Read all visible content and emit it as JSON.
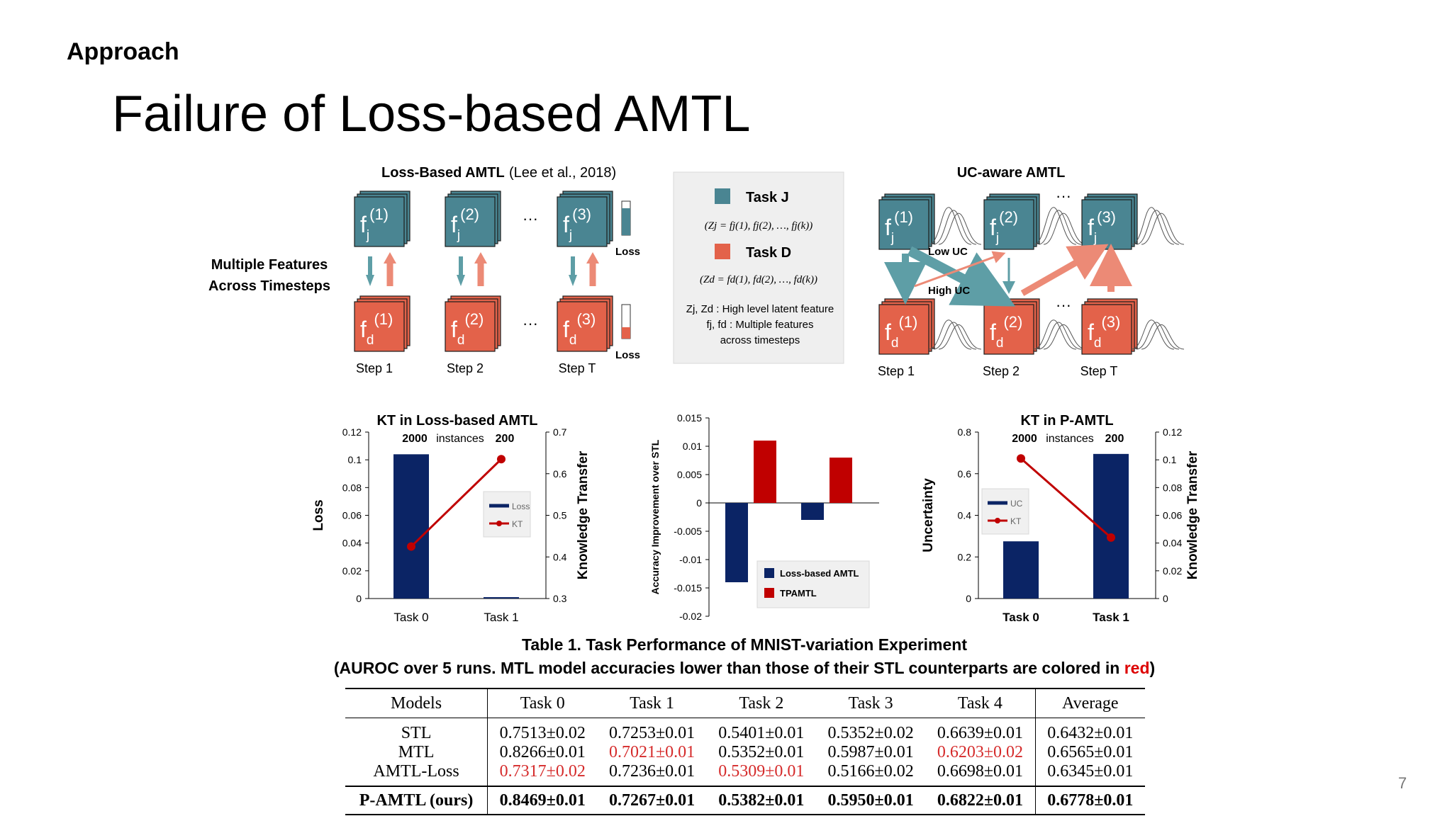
{
  "section": "Approach",
  "title": "Failure of Loss-based AMTL",
  "page_number": "7",
  "diagram_left": {
    "title_bold": "Loss-Based AMTL",
    "title_cite": "(Lee et al., 2018)",
    "side_label_1": "Multiple Features",
    "side_label_2": "Across Timesteps",
    "feat_j": [
      "f",
      "j",
      "(1)",
      "(2)",
      "(3)"
    ],
    "feat_d": [
      "f",
      "d"
    ],
    "loss": "Loss",
    "steps": [
      "Step 1",
      "Step 2",
      "Step T"
    ],
    "ellipsis": "···"
  },
  "legend_box": {
    "task_j": "Task J",
    "task_j_formula": "(Zj = fj(1), fj(2), …, fj(k))",
    "task_d": "Task D",
    "task_d_formula": "(Zd = fd(1), fd(2), …, fd(k))",
    "note1": "Zj, Zd : High level latent feature",
    "note2": "fj, fd : Multiple features",
    "note3": "across timesteps"
  },
  "diagram_right": {
    "title": "UC-aware AMTL",
    "low_uc": "Low UC",
    "high_uc": "High UC",
    "steps": [
      "Step 1",
      "Step 2",
      "Step T"
    ]
  },
  "colors": {
    "teal": "#4a8592",
    "orange": "#e3624a",
    "navy": "#0b2465",
    "red": "#c00000"
  },
  "chart_data": [
    {
      "type": "bar+line",
      "title": "KT in Loss-based AMTL",
      "annotation": [
        "2000",
        "instances",
        "200"
      ],
      "categories": [
        "Task 0",
        "Task 1"
      ],
      "ylabel": "Loss",
      "y2label": "Knowledge Transfer",
      "ylim": [
        0,
        0.12
      ],
      "yticks": [
        "0",
        "0.02",
        "0.04",
        "0.06",
        "0.08",
        "0.1",
        "0.12"
      ],
      "y2lim": [
        0.3,
        0.7
      ],
      "y2ticks": [
        "0.3",
        "0.4",
        "0.5",
        "0.6",
        "0.7"
      ],
      "series": [
        {
          "name": "Loss",
          "kind": "bar",
          "axis": "left",
          "values": [
            0.104,
            0.001
          ]
        },
        {
          "name": "KT",
          "kind": "line",
          "axis": "right",
          "values": [
            0.425,
            0.635
          ]
        }
      ],
      "legend": "center-right"
    },
    {
      "type": "bar",
      "ylabel": "Accuracy Improvement over STL",
      "ylim": [
        -0.02,
        0.015
      ],
      "yticks": [
        "-0.02",
        "-0.015",
        "-0.01",
        "-0.005",
        "0",
        "0.005",
        "0.01",
        "0.015"
      ],
      "categories": [
        "",
        ""
      ],
      "series": [
        {
          "name": "Loss-based AMTL",
          "values": [
            -0.014,
            -0.003
          ]
        },
        {
          "name": "TPAMTL",
          "values": [
            0.011,
            0.008
          ]
        }
      ],
      "legend": "bottom-right"
    },
    {
      "type": "bar+line",
      "title": "KT in P-AMTL",
      "annotation": [
        "2000",
        "instances",
        "200"
      ],
      "categories": [
        "Task 0",
        "Task 1"
      ],
      "ylabel": "Uncertainty",
      "y2label": "Knowledge Transfer",
      "ylim": [
        0,
        0.8
      ],
      "yticks": [
        "0",
        "0.2",
        "0.4",
        "0.6",
        "0.8"
      ],
      "y2lim": [
        0,
        0.12
      ],
      "y2ticks": [
        "0",
        "0.02",
        "0.04",
        "0.06",
        "0.08",
        "0.1",
        "0.12"
      ],
      "series": [
        {
          "name": "UC",
          "kind": "bar",
          "axis": "left",
          "values": [
            0.275,
            0.695
          ]
        },
        {
          "name": "KT",
          "kind": "line",
          "axis": "right",
          "values": [
            0.101,
            0.044
          ]
        }
      ],
      "legend": "center-left"
    }
  ],
  "table": {
    "caption1": "Table 1. Task Performance of MNIST-variation Experiment",
    "caption2_a": "(AUROC over 5 runs. MTL model accuracies lower than those of their STL counterparts are colored in ",
    "caption2_red": "red",
    "caption2_b": ")",
    "headers": [
      "Models",
      "Task 0",
      "Task 1",
      "Task 2",
      "Task 3",
      "Task 4",
      "Average"
    ],
    "rows": [
      {
        "model": "STL",
        "cells": [
          "0.7513±0.02",
          "0.7253±0.01",
          "0.5401±0.01",
          "0.5352±0.02",
          "0.6639±0.01",
          "0.6432±0.01"
        ]
      },
      {
        "model": "MTL",
        "cells": [
          "0.8266±0.01",
          "0.7021±0.01",
          "0.5352±0.01",
          "0.5987±0.01",
          "0.6203±0.02",
          "0.6565±0.01"
        ]
      },
      {
        "model": "AMTL-Loss",
        "cells": [
          "0.7317±0.02",
          "0.7236±0.01",
          "0.5309±0.01",
          "0.5166±0.02",
          "0.6698±0.01",
          "0.6345±0.01"
        ]
      }
    ],
    "ours": {
      "model": "P-AMTL (ours)",
      "cells": [
        "0.8469±0.01",
        "0.7267±0.01",
        "0.5382±0.01",
        "0.5950±0.01",
        "0.6822±0.01",
        "0.6778±0.01"
      ]
    }
  }
}
